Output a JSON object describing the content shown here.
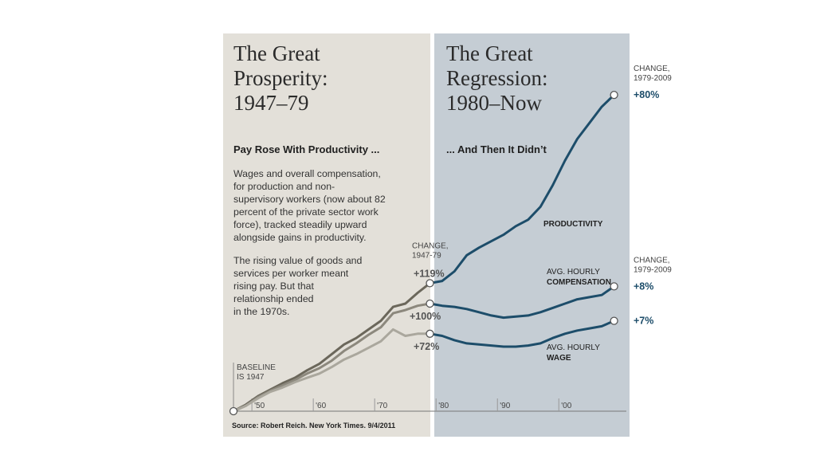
{
  "chart_data": {
    "type": "line",
    "panels": [
      {
        "title": [
          "The Great",
          "Prosperity:",
          "1947–79"
        ],
        "subtitle": "Pay Rose With Productivity ...",
        "text": [
          [
            "Wages and overall compensation,",
            "for production and non-",
            "supervisory workers (now about 82",
            "percent of the private sector work",
            "force), tracked steadily upward",
            "alongside gains in productivity."
          ],
          [
            "The rising value of goods and",
            "services per worker meant",
            "rising pay. But that",
            "relationship ended",
            "in the 1970s."
          ]
        ],
        "change_header": [
          "CHANGE,",
          "1947-79"
        ]
      },
      {
        "title": [
          "The Great",
          "Regression:",
          "1980–Now"
        ],
        "subtitle": "... And Then It Didn’t",
        "change_header": [
          "CHANGE,",
          "1979-2009"
        ]
      }
    ],
    "baseline_label": [
      "BASELINE",
      "IS 1947"
    ],
    "source": "Source: Robert Reich. New York Times. 9/4/2011",
    "x": [
      1947,
      1949,
      1951,
      1953,
      1955,
      1957,
      1959,
      1961,
      1963,
      1965,
      1967,
      1969,
      1971,
      1973,
      1975,
      1977,
      1979,
      1981,
      1983,
      1985,
      1987,
      1989,
      1991,
      1993,
      1995,
      1997,
      1999,
      2001,
      2003,
      2005,
      2007,
      2009
    ],
    "series": [
      {
        "name": [
          "PRODUCTIVITY"
        ],
        "colors": [
          "#6b675b",
          "#1d4d6a"
        ],
        "values": [
          0,
          6,
          14,
          20,
          26,
          31,
          38,
          44,
          53,
          62,
          68,
          76,
          84,
          97,
          100,
          110,
          119,
          121,
          130,
          145,
          152,
          158,
          164,
          172,
          178,
          190,
          210,
          233,
          253,
          268,
          283,
          294
        ],
        "annotations": [
          {
            "x": 1979,
            "value": 119,
            "label": "+119%"
          },
          {
            "x": 2009,
            "value": 80,
            "label": "+80%"
          }
        ]
      },
      {
        "name": [
          "AVG. HOURLY",
          "COMPENSATION"
        ],
        "colors": [
          "#8c887d",
          "#1d4d6a"
        ],
        "values": [
          0,
          5,
          13,
          19,
          24,
          29,
          35,
          40,
          47,
          56,
          63,
          71,
          78,
          91,
          94,
          98,
          100,
          98,
          97,
          95,
          92,
          89,
          87,
          88,
          89,
          92,
          96,
          100,
          104,
          106,
          108,
          116
        ],
        "annotations": [
          {
            "x": 1979,
            "value": 100,
            "label": "+100%"
          },
          {
            "x": 2009,
            "value": 8,
            "label": "+8%"
          }
        ]
      },
      {
        "name": [
          "AVG. HOURLY",
          "WAGE"
        ],
        "colors": [
          "#aaa79d",
          "#1d4d6a"
        ],
        "values": [
          0,
          5,
          12,
          18,
          22,
          27,
          31,
          35,
          41,
          48,
          53,
          59,
          65,
          76,
          70,
          72,
          72,
          70,
          66,
          63,
          62,
          61,
          60,
          60,
          61,
          63,
          68,
          72,
          75,
          77,
          79,
          84
        ],
        "annotations": [
          {
            "x": 1979,
            "value": 72,
            "label": "+72%"
          },
          {
            "x": 2009,
            "value": 7,
            "label": "+7%"
          }
        ]
      }
    ],
    "xlim": [
      1947,
      2011
    ],
    "ylim": [
      0,
      300
    ],
    "xticks": [
      {
        "value": 1950,
        "label": "'50"
      },
      {
        "value": 1960,
        "label": "'60"
      },
      {
        "value": 1970,
        "label": "'70"
      },
      {
        "value": 1980,
        "label": "'80"
      },
      {
        "value": 1990,
        "label": "'90"
      },
      {
        "value": 2000,
        "label": "'00"
      }
    ]
  }
}
